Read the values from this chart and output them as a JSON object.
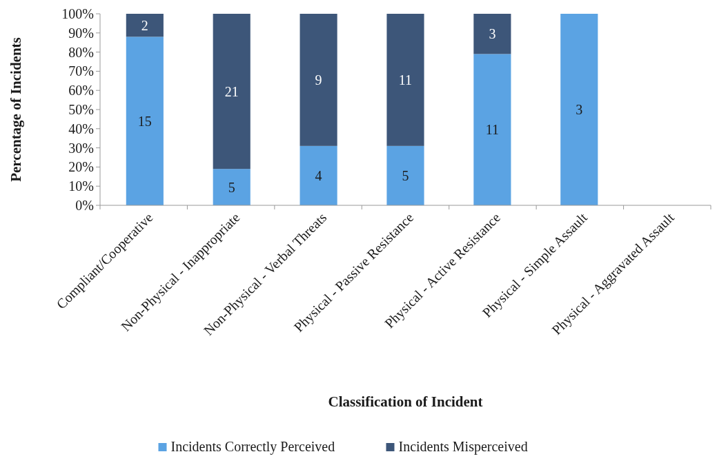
{
  "chart_data": {
    "type": "bar",
    "stacked": true,
    "xlabel": "Classification of Incident",
    "ylabel": "Percentage of Incidents",
    "categories": [
      "Compliant/Cooperative",
      "Non-Physical - Inappropriate",
      "Non-Physical - Verbal Threats",
      "Physical - Passive Resistance",
      "Physical - Active Resistance",
      "Physical - Simple Assault",
      "Physical - Aggravated Assault"
    ],
    "series": [
      {
        "name": "Incidents Correctly Perceived",
        "color": "#5ba3e3",
        "values": [
          88,
          19,
          31,
          31,
          79,
          100,
          null
        ]
      },
      {
        "name": "Incidents Misperceived",
        "color": "#3d5679",
        "values": [
          12,
          81,
          69,
          69,
          21,
          0,
          null
        ]
      }
    ],
    "annotations": [
      "15",
      "2",
      "5",
      "21",
      "4",
      "9",
      "5",
      "11",
      "11",
      "3",
      "3"
    ],
    "ylim": [
      0,
      100
    ],
    "yticks": [
      {
        "value": 0,
        "label": "0%"
      },
      {
        "value": 10,
        "label": "10%"
      },
      {
        "value": 20,
        "label": "20%"
      },
      {
        "value": 30,
        "label": "30%"
      },
      {
        "value": 40,
        "label": "40%"
      },
      {
        "value": 50,
        "label": "50%"
      },
      {
        "value": 60,
        "label": "60%"
      },
      {
        "value": 70,
        "label": "70%"
      },
      {
        "value": 80,
        "label": "80%"
      },
      {
        "value": 90,
        "label": "90%"
      },
      {
        "value": 100,
        "label": "100%"
      }
    ],
    "legend": "bottom"
  }
}
